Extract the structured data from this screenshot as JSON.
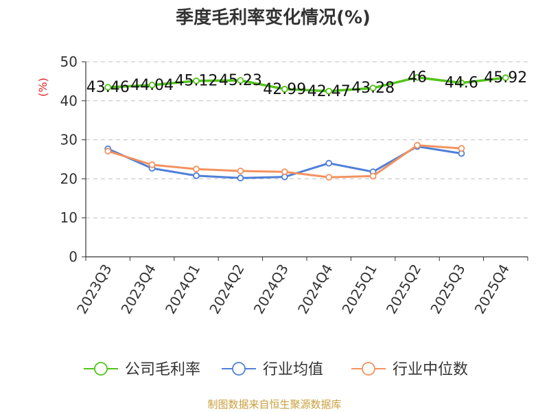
{
  "chart_data": {
    "type": "line",
    "title": "季度毛利率变化情况(%)",
    "ylabel": "(%)",
    "xlabel": "",
    "ylim": [
      0,
      50
    ],
    "yticks": [
      0,
      10,
      20,
      30,
      40,
      50
    ],
    "categories": [
      "2023Q3",
      "2023Q4",
      "2024Q1",
      "2024Q2",
      "2024Q3",
      "2024Q4",
      "2025Q1",
      "2025Q2",
      "2025Q3",
      "2025Q4"
    ],
    "grid": true,
    "legend_position": "bottom",
    "series": [
      {
        "name": "公司毛利率",
        "color": "#52c41a",
        "values": [
          43.46,
          44.04,
          45.12,
          45.23,
          42.99,
          42.47,
          43.28,
          46,
          44.6,
          45.92
        ],
        "labels": [
          "43.46",
          "44.04",
          "45.12",
          "45.23",
          "42.99",
          "42.47",
          "43.28",
          "46",
          "44.6",
          "45.92"
        ]
      },
      {
        "name": "行业均值",
        "color": "#4f7fd8",
        "values": [
          27.7,
          22.7,
          20.8,
          20.2,
          20.5,
          24.0,
          21.8,
          28.3,
          26.5,
          null
        ]
      },
      {
        "name": "行业中位数",
        "color": "#f4925e",
        "values": [
          27.1,
          23.6,
          22.5,
          22.0,
          21.8,
          20.4,
          20.7,
          28.6,
          27.8,
          null
        ]
      }
    ]
  },
  "source": "制图数据来自恒生聚源数据库"
}
